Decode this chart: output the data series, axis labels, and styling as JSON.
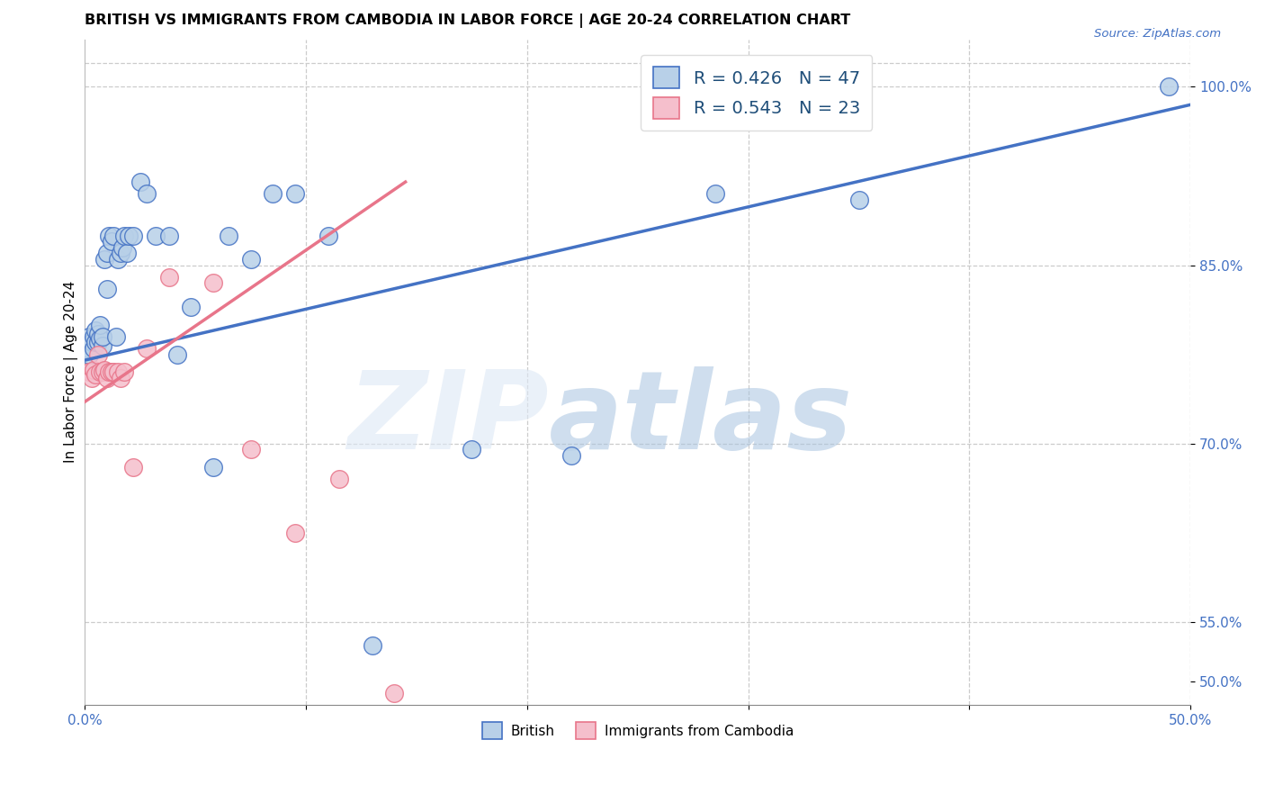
{
  "title": "BRITISH VS IMMIGRANTS FROM CAMBODIA IN LABOR FORCE | AGE 20-24 CORRELATION CHART",
  "source": "Source: ZipAtlas.com",
  "ylabel": "In Labor Force | Age 20-24",
  "xlim": [
    0.0,
    0.5
  ],
  "ylim": [
    0.48,
    1.04
  ],
  "xticks": [
    0.0,
    0.1,
    0.2,
    0.3,
    0.4,
    0.5
  ],
  "xticklabels": [
    "0.0%",
    "",
    "",
    "",
    "",
    "50.0%"
  ],
  "yticks": [
    0.5,
    0.55,
    0.7,
    0.85,
    1.0
  ],
  "yticklabels": [
    "50.0%",
    "55.0%",
    "70.0%",
    "85.0%",
    "100.0%"
  ],
  "british_R": 0.426,
  "british_N": 47,
  "cambodia_R": 0.543,
  "cambodia_N": 23,
  "british_color": "#b8d0e8",
  "cambodia_color": "#f5bfcc",
  "british_line_color": "#4472c4",
  "cambodia_line_color": "#e8758a",
  "legend_text_color": "#1f4e79",
  "watermark_color": "#ccd9ee",
  "background_color": "#ffffff",
  "grid_color": "#cccccc",
  "british_x": [
    0.001,
    0.002,
    0.002,
    0.003,
    0.003,
    0.004,
    0.004,
    0.005,
    0.005,
    0.006,
    0.006,
    0.007,
    0.007,
    0.008,
    0.008,
    0.009,
    0.01,
    0.01,
    0.011,
    0.012,
    0.013,
    0.014,
    0.015,
    0.016,
    0.017,
    0.018,
    0.019,
    0.02,
    0.022,
    0.025,
    0.028,
    0.032,
    0.038,
    0.042,
    0.048,
    0.058,
    0.065,
    0.075,
    0.085,
    0.095,
    0.11,
    0.13,
    0.175,
    0.22,
    0.285,
    0.35,
    0.49
  ],
  "british_y": [
    0.78,
    0.775,
    0.79,
    0.76,
    0.785,
    0.78,
    0.79,
    0.785,
    0.795,
    0.785,
    0.792,
    0.788,
    0.8,
    0.782,
    0.79,
    0.855,
    0.86,
    0.83,
    0.875,
    0.87,
    0.875,
    0.79,
    0.855,
    0.86,
    0.865,
    0.875,
    0.86,
    0.875,
    0.875,
    0.92,
    0.91,
    0.875,
    0.875,
    0.775,
    0.815,
    0.68,
    0.875,
    0.855,
    0.91,
    0.91,
    0.875,
    0.53,
    0.695,
    0.69,
    0.91,
    0.905,
    1.0
  ],
  "cambodia_x": [
    0.002,
    0.003,
    0.004,
    0.005,
    0.006,
    0.007,
    0.008,
    0.009,
    0.01,
    0.011,
    0.012,
    0.013,
    0.015,
    0.016,
    0.018,
    0.022,
    0.028,
    0.038,
    0.058,
    0.075,
    0.095,
    0.115,
    0.14
  ],
  "cambodia_y": [
    0.76,
    0.755,
    0.762,
    0.758,
    0.775,
    0.76,
    0.76,
    0.762,
    0.755,
    0.76,
    0.76,
    0.76,
    0.76,
    0.755,
    0.76,
    0.68,
    0.78,
    0.84,
    0.835,
    0.695,
    0.625,
    0.67,
    0.49
  ],
  "british_trendline_x": [
    0.0,
    0.5
  ],
  "british_trendline_y": [
    0.77,
    0.985
  ],
  "cambodia_trendline_x": [
    0.0,
    0.145
  ],
  "cambodia_trendline_y": [
    0.735,
    0.92
  ]
}
